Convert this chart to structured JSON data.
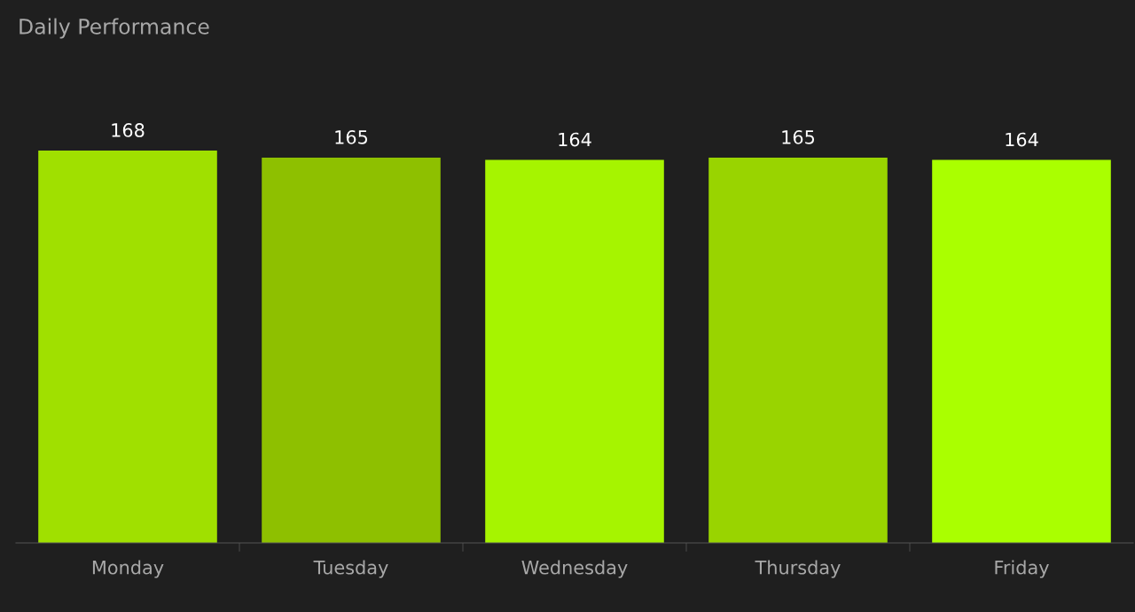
{
  "chart_data": {
    "type": "bar",
    "title": "Daily Performance",
    "categories": [
      "Monday",
      "Tuesday",
      "Wednesday",
      "Thursday",
      "Friday"
    ],
    "values": [
      168,
      165,
      164,
      165,
      164
    ],
    "colors": [
      "#a0e000",
      "#8ec000",
      "#a6f400",
      "#99d400",
      "#aaff00"
    ],
    "data_labels": true,
    "grid": false,
    "legend": false
  }
}
